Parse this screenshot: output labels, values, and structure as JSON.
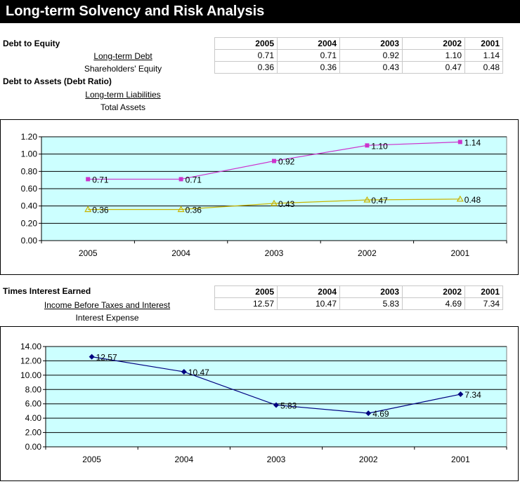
{
  "title": "Long-term Solvency and Risk Analysis",
  "debt_to_equity": {
    "heading": "Debt to Equity",
    "row1_label": "Long-term Debt",
    "row2_label": "Shareholders' Equity",
    "years": [
      "2005",
      "2004",
      "2003",
      "2002",
      "2001"
    ],
    "row1_values": [
      "0.71",
      "0.71",
      "0.92",
      "1.10",
      "1.14"
    ],
    "row2_values": [
      "0.36",
      "0.36",
      "0.43",
      "0.47",
      "0.48"
    ]
  },
  "debt_to_assets": {
    "heading": "Debt to Assets (Debt Ratio)",
    "numerator_label": "Long-term Liabilities",
    "denominator_label": "Total Assets"
  },
  "times_interest": {
    "heading": "Times Interest Earned",
    "numerator_label": "Income Before Taxes and Interest",
    "denominator_label": "Interest Expense",
    "years": [
      "2005",
      "2004",
      "2003",
      "2002",
      "2001"
    ],
    "values": [
      "12.57",
      "10.47",
      "5.83",
      "4.69",
      "7.34"
    ]
  },
  "chart_data": [
    {
      "type": "line",
      "categories": [
        "2005",
        "2004",
        "2003",
        "2002",
        "2001"
      ],
      "series": [
        {
          "name": "Debt to Equity",
          "values": [
            0.71,
            0.71,
            0.92,
            1.1,
            1.14
          ],
          "labels": [
            "0.71",
            "0.71",
            "0.92",
            "1.10",
            "1.14"
          ],
          "color": "#cc33cc",
          "marker": "square"
        },
        {
          "name": "Debt to Assets",
          "values": [
            0.36,
            0.36,
            0.43,
            0.47,
            0.48
          ],
          "labels": [
            "0.36",
            "0.36",
            "0.43",
            "0.47",
            "0.48"
          ],
          "color": "#c8b400",
          "marker": "triangle"
        }
      ],
      "ylim": [
        0,
        1.2
      ],
      "yticks": [
        "0.00",
        "0.20",
        "0.40",
        "0.60",
        "0.80",
        "1.00",
        "1.20"
      ],
      "plot_bg": "#ccffff",
      "grid": true
    },
    {
      "type": "line",
      "categories": [
        "2005",
        "2004",
        "2003",
        "2002",
        "2001"
      ],
      "series": [
        {
          "name": "Times Interest Earned",
          "values": [
            12.57,
            10.47,
            5.83,
            4.69,
            7.34
          ],
          "labels": [
            "12.57",
            "10.47",
            "5.83",
            "4.69",
            "7.34"
          ],
          "color": "#000080",
          "marker": "diamond"
        }
      ],
      "ylim": [
        0,
        14
      ],
      "yticks": [
        "0.00",
        "2.00",
        "4.00",
        "6.00",
        "8.00",
        "10.00",
        "12.00",
        "14.00"
      ],
      "plot_bg": "#ccffff",
      "grid": true
    }
  ]
}
